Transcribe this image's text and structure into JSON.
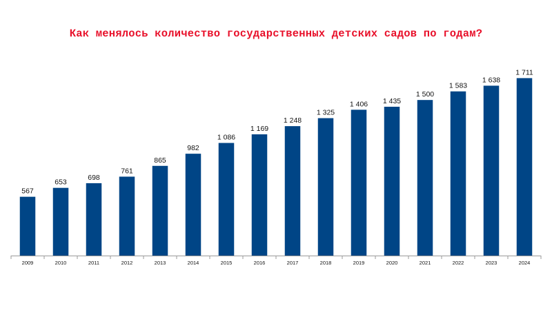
{
  "chart_data": {
    "type": "bar",
    "title": "Как менялось количество государственных детских садов по годам?",
    "xlabel": "",
    "ylabel": "",
    "categories": [
      "2009",
      "2010",
      "2011",
      "2012",
      "2013",
      "2014",
      "2015",
      "2016",
      "2017",
      "2018",
      "2019",
      "2020",
      "2021",
      "2022",
      "2023",
      "2024"
    ],
    "values": [
      567,
      653,
      698,
      761,
      865,
      982,
      1086,
      1169,
      1248,
      1325,
      1406,
      1435,
      1500,
      1583,
      1638,
      1711
    ],
    "value_labels": [
      "567",
      "653",
      "698",
      "761",
      "865",
      "982",
      "1 086",
      "1 169",
      "1 248",
      "1 325",
      "1 406",
      "1 435",
      "1 500",
      "1 583",
      "1 638",
      "1 711"
    ],
    "ylim": [
      0,
      1800
    ],
    "grid": false,
    "legend": "none",
    "bar_color": "#004586",
    "title_color": "#e8102a"
  }
}
